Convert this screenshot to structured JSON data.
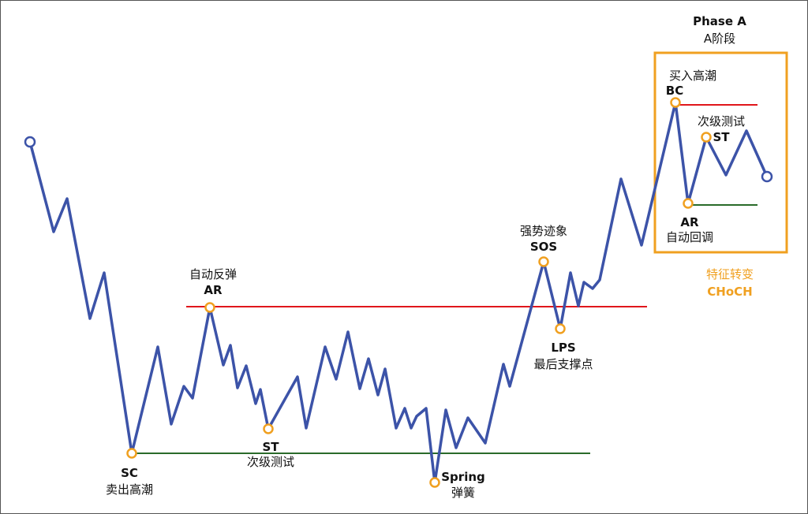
{
  "phase": {
    "title": "Phase A",
    "subtitle": "A阶段"
  },
  "choch": {
    "line1": "特征转变",
    "line2": "CHoCH"
  },
  "labels": {
    "sc_code": "SC",
    "sc_text": "卖出高潮",
    "ar_text": "自动反弹",
    "ar_code": "AR",
    "st_code": "ST",
    "st_text": "次级测试",
    "spring_code": "Spring",
    "spring_text": "弹簧",
    "sos_text": "强势迹象",
    "sos_code": "SOS",
    "lps_code": "LPS",
    "lps_text": "最后支撑点",
    "bc_text": "买入高潮",
    "bc_code": "BC",
    "st2_text": "次级测试",
    "st2_code": "ST",
    "ar2_code": "AR",
    "ar2_text": "自动回调"
  },
  "colors": {
    "price_line": "#3c53a8",
    "resistance": "#e0161b",
    "support": "#2a6b2a",
    "marker": "#f0a020",
    "box": "#f0a020"
  },
  "icons": {
    "start": "circle-marker",
    "end": "circle-marker",
    "event": "circle-marker"
  }
}
